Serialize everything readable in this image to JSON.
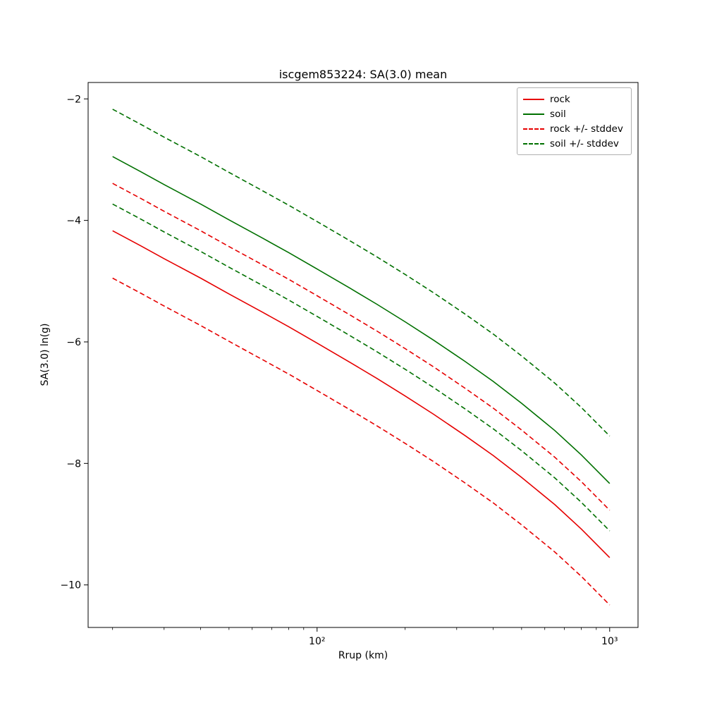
{
  "title": "iscgem853224: SA(3.0) mean",
  "chart_data": {
    "type": "line",
    "title": "iscgem853224: SA(3.0) mean",
    "xlabel": "Rrup (km)",
    "ylabel": "SA(3.0) ln(g)",
    "xscale": "log",
    "grid": false,
    "legend_position": "upper right",
    "xlim": [
      16.5,
      1250
    ],
    "ylim": [
      -10.7,
      -1.73
    ],
    "yticks": [
      -2,
      -4,
      -6,
      -8,
      -10
    ],
    "ytick_labels": [
      "−2",
      "−4",
      "−6",
      "−8",
      "−10"
    ],
    "xticks": [
      100,
      1000
    ],
    "xtick_labels": [
      "10²",
      "10³"
    ],
    "xminor_ticks": [
      20,
      30,
      40,
      50,
      60,
      70,
      80,
      90,
      200,
      300,
      400,
      500,
      600,
      700,
      800,
      900
    ],
    "x": [
      20,
      25,
      30,
      40,
      50,
      65,
      80,
      100,
      130,
      160,
      200,
      250,
      320,
      400,
      500,
      650,
      800,
      1000
    ],
    "series": [
      {
        "name": "rock",
        "color": "#e60000",
        "dash": "solid",
        "values": [
          -4.17,
          -4.42,
          -4.63,
          -4.95,
          -5.21,
          -5.51,
          -5.75,
          -6.02,
          -6.34,
          -6.6,
          -6.89,
          -7.19,
          -7.54,
          -7.87,
          -8.23,
          -8.68,
          -9.08,
          -9.55
        ]
      },
      {
        "name": "soil",
        "color": "#007000",
        "dash": "solid",
        "values": [
          -2.95,
          -3.2,
          -3.41,
          -3.73,
          -3.99,
          -4.29,
          -4.53,
          -4.8,
          -5.12,
          -5.38,
          -5.67,
          -5.97,
          -6.32,
          -6.65,
          -7.01,
          -7.46,
          -7.86,
          -8.33
        ]
      },
      {
        "name": "rock +/- stddev",
        "color": "#e60000",
        "dash": "dashed",
        "values_upper": [
          -3.39,
          -3.64,
          -3.85,
          -4.17,
          -4.43,
          -4.73,
          -4.97,
          -5.24,
          -5.56,
          -5.82,
          -6.11,
          -6.41,
          -6.76,
          -7.09,
          -7.45,
          -7.9,
          -8.3,
          -8.77
        ],
        "values_lower": [
          -4.95,
          -5.2,
          -5.41,
          -5.73,
          -5.99,
          -6.29,
          -6.53,
          -6.8,
          -7.12,
          -7.38,
          -7.67,
          -7.97,
          -8.32,
          -8.65,
          -9.01,
          -9.46,
          -9.86,
          -10.33
        ]
      },
      {
        "name": "soil +/- stddev",
        "color": "#007000",
        "dash": "dashed",
        "values_upper": [
          -2.17,
          -2.42,
          -2.63,
          -2.95,
          -3.21,
          -3.51,
          -3.75,
          -4.02,
          -4.34,
          -4.6,
          -4.89,
          -5.19,
          -5.54,
          -5.87,
          -6.23,
          -6.68,
          -7.08,
          -7.55
        ],
        "values_lower": [
          -3.73,
          -3.98,
          -4.19,
          -4.51,
          -4.77,
          -5.07,
          -5.31,
          -5.58,
          -5.9,
          -6.16,
          -6.45,
          -6.75,
          -7.1,
          -7.43,
          -7.79,
          -8.24,
          -8.64,
          -9.11
        ]
      }
    ]
  }
}
